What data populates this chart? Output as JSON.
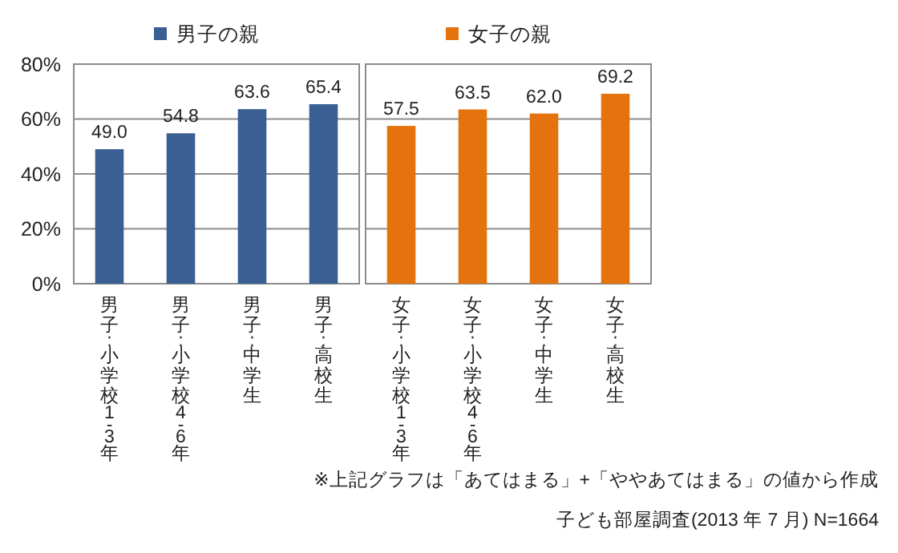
{
  "chart_data": [
    {
      "type": "bar",
      "categories": [
        "男子:小学校1-3年",
        "男子:小学校4-6年",
        "男子:中学生",
        "男子:高校生"
      ],
      "series": [
        {
          "name": "男子の親",
          "color": "#3a5f93",
          "values": [
            49.0,
            54.8,
            63.6,
            65.4
          ],
          "value_labels": [
            "49.0",
            "54.8",
            "63.6",
            "65.4"
          ]
        }
      ],
      "ylim": [
        0,
        80
      ],
      "yticks": [
        {
          "value": 0,
          "label": "0%"
        },
        {
          "value": 20,
          "label": "20%"
        },
        {
          "value": 40,
          "label": "40%"
        },
        {
          "value": 60,
          "label": "60%"
        },
        {
          "value": 80,
          "label": "80%"
        }
      ],
      "grid": "y",
      "legend": "top"
    },
    {
      "type": "bar",
      "categories": [
        "女子:小学校1-3年",
        "女子:小学校4-6年",
        "女子:中学生",
        "女子:高校生"
      ],
      "series": [
        {
          "name": "女子の親",
          "color": "#e4730e",
          "values": [
            57.5,
            63.5,
            62.0,
            69.2
          ],
          "value_labels": [
            "57.5",
            "63.5",
            "62.0",
            "69.2"
          ]
        }
      ],
      "ylim": [
        0,
        80
      ],
      "yticks": [
        {
          "value": 0,
          "label": null
        },
        {
          "value": 20,
          "label": null
        },
        {
          "value": 40,
          "label": null
        },
        {
          "value": 60,
          "label": null
        },
        {
          "value": 80,
          "label": null
        }
      ],
      "grid": "y",
      "legend": "top",
      "tick_labels": "x",
      "annotations": [
        "※上記グラフは「あてはまる」+「ややあてはまる」の値から作成",
        "子ども部屋調査(2013 年 7 月)  N=1664"
      ]
    }
  ]
}
